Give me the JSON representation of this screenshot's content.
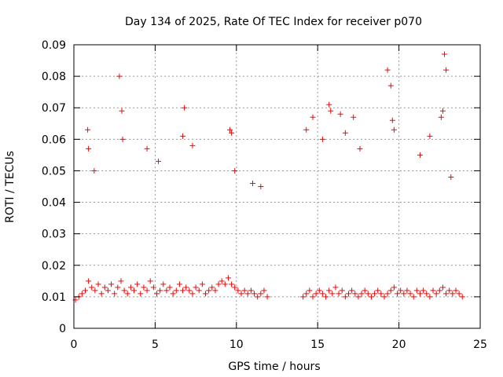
{
  "chart_data": {
    "type": "scatter",
    "title": "Day 134 of 2025, Rate Of TEC Index for receiver p070",
    "xlabel": "GPS time / hours",
    "ylabel": "ROTI / TECUs",
    "xlim": [
      0,
      25
    ],
    "ylim": [
      0,
      0.09
    ],
    "x_ticks": [
      "0",
      "5",
      "10",
      "15",
      "20",
      "25"
    ],
    "y_ticks": [
      "0",
      "0.01",
      "0.02",
      "0.03",
      "0.04",
      "0.05",
      "0.06",
      "0.07",
      "0.08",
      "0.09"
    ],
    "grid": true,
    "legend": "none",
    "marker": "plus",
    "series": [
      {
        "color": "#ff0000",
        "x": [
          0.1,
          0.3,
          0.5,
          0.7,
          0.9,
          1.1,
          1.3,
          1.5,
          1.7,
          1.9,
          2.1,
          2.3,
          2.5,
          2.7,
          2.9,
          3.1,
          3.3,
          3.5,
          3.7,
          3.9,
          4.1,
          4.3,
          4.5,
          4.7,
          4.9,
          5.1,
          5.3,
          5.5,
          5.7,
          5.9,
          6.1,
          6.3,
          6.5,
          6.7,
          6.9,
          7.1,
          7.3,
          7.5,
          7.7,
          7.9,
          8.1,
          8.3,
          8.5,
          8.7,
          8.9,
          9.1,
          9.3,
          9.5,
          9.7,
          9.9,
          10.1,
          10.3,
          10.5,
          10.7,
          10.9,
          11.1,
          11.3,
          11.5,
          11.7,
          11.9,
          14.1,
          14.3,
          14.5,
          14.7,
          14.9,
          15.1,
          15.3,
          15.5,
          15.7,
          15.9,
          16.1,
          16.3,
          16.5,
          16.7,
          16.9,
          17.1,
          17.3,
          17.5,
          17.7,
          17.9,
          18.1,
          18.3,
          18.5,
          18.7,
          18.9,
          19.1,
          19.3,
          19.5,
          19.7,
          19.9,
          20.1,
          20.3,
          20.5,
          20.7,
          20.9,
          21.1,
          21.3,
          21.5,
          21.7,
          21.9,
          22.1,
          22.3,
          22.5,
          22.7,
          22.9,
          23.1,
          23.3,
          23.5,
          23.7,
          23.9,
          0.85,
          0.9,
          1.25,
          2.8,
          2.95,
          3.0,
          4.5,
          5.2,
          6.7,
          6.8,
          7.3,
          9.6,
          9.7,
          9.9,
          11.0,
          11.5,
          14.3,
          14.7,
          15.3,
          15.7,
          15.8,
          16.4,
          16.7,
          17.2,
          17.6,
          19.3,
          19.5,
          19.6,
          19.7,
          21.3,
          21.9,
          22.6,
          22.7,
          22.8,
          22.9,
          23.2
        ],
        "y": [
          0.009,
          0.01,
          0.011,
          0.012,
          0.015,
          0.013,
          0.012,
          0.014,
          0.011,
          0.013,
          0.012,
          0.014,
          0.011,
          0.013,
          0.015,
          0.012,
          0.011,
          0.013,
          0.012,
          0.014,
          0.011,
          0.013,
          0.012,
          0.015,
          0.013,
          0.011,
          0.012,
          0.014,
          0.012,
          0.013,
          0.011,
          0.012,
          0.014,
          0.012,
          0.013,
          0.012,
          0.011,
          0.013,
          0.012,
          0.014,
          0.011,
          0.012,
          0.013,
          0.012,
          0.014,
          0.015,
          0.014,
          0.016,
          0.014,
          0.013,
          0.012,
          0.011,
          0.012,
          0.011,
          0.012,
          0.011,
          0.01,
          0.011,
          0.012,
          0.01,
          0.01,
          0.011,
          0.012,
          0.01,
          0.011,
          0.012,
          0.011,
          0.01,
          0.012,
          0.011,
          0.013,
          0.011,
          0.012,
          0.01,
          0.011,
          0.012,
          0.011,
          0.01,
          0.011,
          0.012,
          0.011,
          0.01,
          0.011,
          0.012,
          0.011,
          0.01,
          0.011,
          0.012,
          0.013,
          0.011,
          0.012,
          0.011,
          0.012,
          0.011,
          0.01,
          0.012,
          0.011,
          0.012,
          0.011,
          0.01,
          0.012,
          0.011,
          0.012,
          0.013,
          0.011,
          0.012,
          0.011,
          0.012,
          0.011,
          0.01,
          0.063,
          0.057,
          0.05,
          0.08,
          0.069,
          0.06,
          0.057,
          0.053,
          0.061,
          0.07,
          0.058,
          0.063,
          0.062,
          0.05,
          0.046,
          0.045,
          0.063,
          0.067,
          0.06,
          0.071,
          0.069,
          0.068,
          0.062,
          0.067,
          0.057,
          0.082,
          0.077,
          0.066,
          0.063,
          0.055,
          0.061,
          0.067,
          0.069,
          0.087,
          0.082,
          0.048
        ]
      }
    ]
  }
}
